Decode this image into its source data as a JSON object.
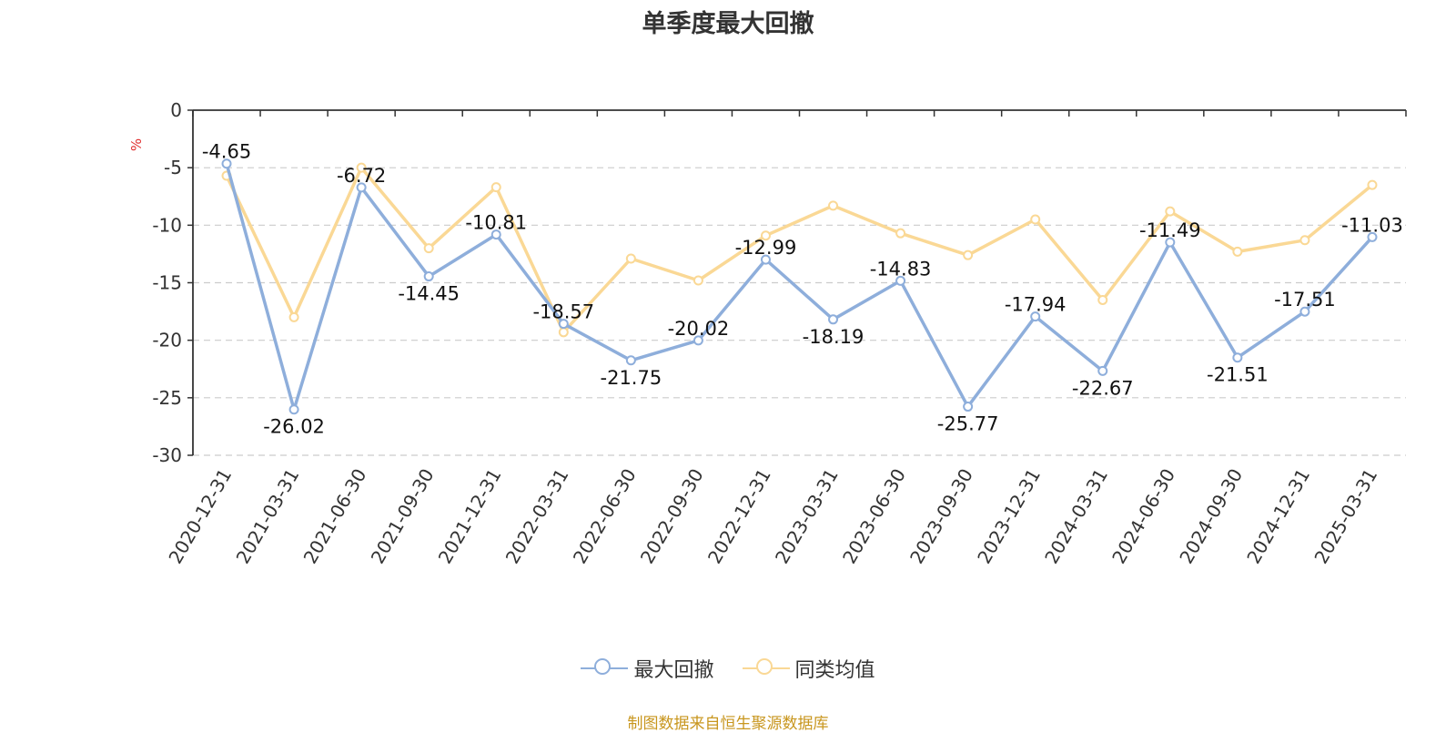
{
  "chart_data": {
    "type": "line",
    "title": "单季度最大回撤",
    "ylabel": "%",
    "ylim": [
      -30,
      0
    ],
    "yticks": [
      0,
      -5,
      -10,
      -15,
      -20,
      -25,
      -30
    ],
    "grid": true,
    "legend_position": "bottom",
    "categories": [
      "2020-12-31",
      "2021-03-31",
      "2021-06-30",
      "2021-09-30",
      "2021-12-31",
      "2022-03-31",
      "2022-06-30",
      "2022-09-30",
      "2022-12-31",
      "2023-03-31",
      "2023-06-30",
      "2023-09-30",
      "2023-12-31",
      "2024-03-31",
      "2024-06-30",
      "2024-09-30",
      "2024-12-31",
      "2025-03-31"
    ],
    "series": [
      {
        "name": "最大回撤",
        "color": "#8eaedb",
        "labeled": true,
        "values": [
          -4.65,
          -26.02,
          -6.72,
          -14.45,
          -10.81,
          -18.57,
          -21.75,
          -20.02,
          -12.99,
          -18.19,
          -14.83,
          -25.77,
          -17.94,
          -22.67,
          -11.49,
          -21.51,
          -17.51,
          -11.03
        ]
      },
      {
        "name": "同类均值",
        "color": "#fad895",
        "labeled": false,
        "values": [
          -5.7,
          -18.0,
          -5.0,
          -12.0,
          -6.7,
          -19.3,
          -12.9,
          -14.8,
          -10.9,
          -8.3,
          -10.7,
          -12.6,
          -9.5,
          -16.5,
          -8.8,
          -12.3,
          -11.3,
          -6.5
        ]
      }
    ]
  },
  "footer": {
    "source": "制图数据来自恒生聚源数据库"
  }
}
